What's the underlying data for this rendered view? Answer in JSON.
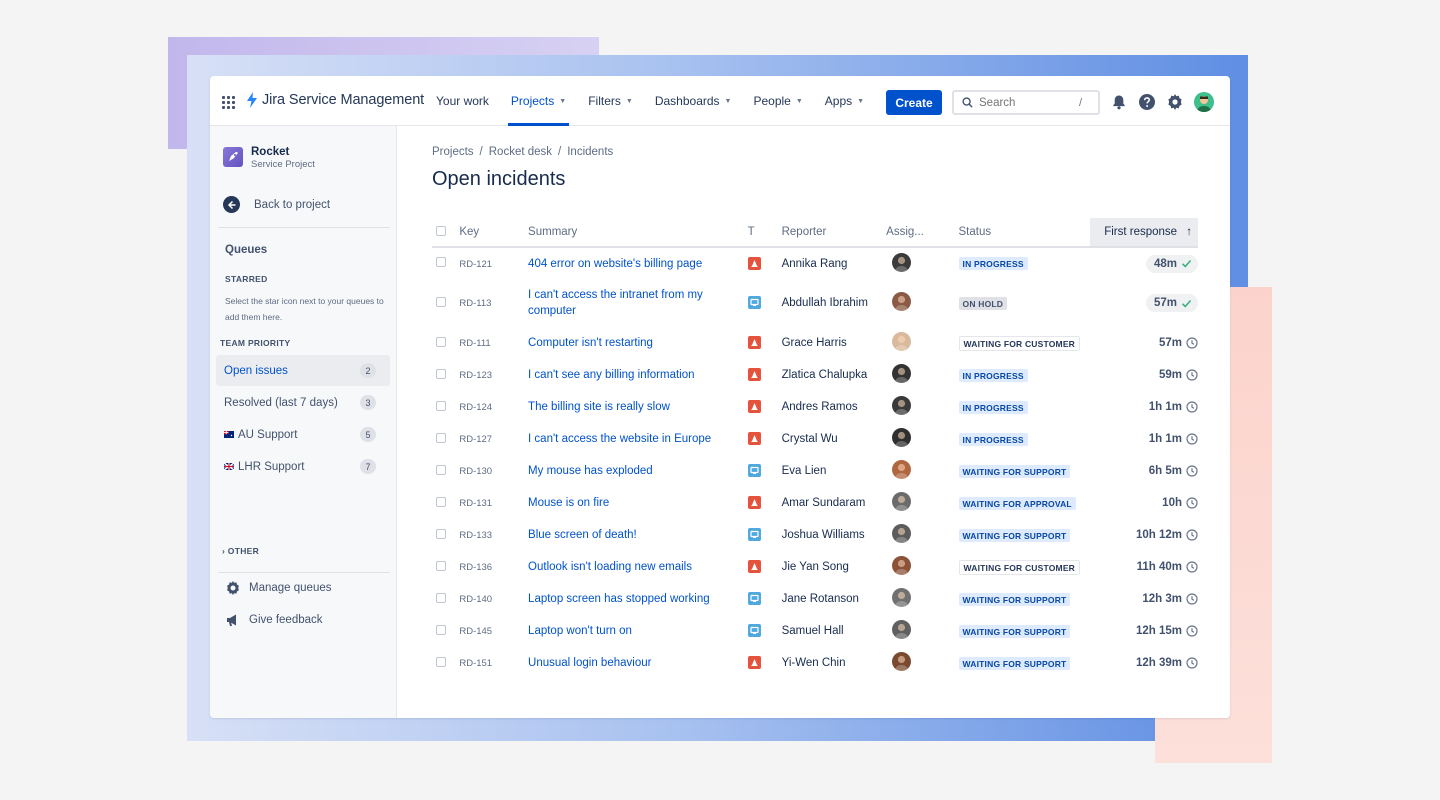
{
  "nav": {
    "product": "Jira Service Management",
    "items": [
      {
        "label": "Your work",
        "caret": false,
        "active": false
      },
      {
        "label": "Projects",
        "caret": true,
        "active": true
      },
      {
        "label": "Filters",
        "caret": true,
        "active": false
      },
      {
        "label": "Dashboards",
        "caret": true,
        "active": false
      },
      {
        "label": "People",
        "caret": true,
        "active": false
      },
      {
        "label": "Apps",
        "caret": true,
        "active": false
      }
    ],
    "create_label": "Create",
    "search_placeholder": "Search",
    "search_shortcut": "/"
  },
  "sidebar": {
    "project_name": "Rocket",
    "project_type": "Service Project",
    "back_label": "Back to project",
    "queues_heading": "Queues",
    "starred_heading": "STARRED",
    "starred_note": "Select the star icon next to your queues to add them here.",
    "team_heading": "TEAM PRIORITY",
    "queues": [
      {
        "label": "Open issues",
        "count": "2",
        "flag": "",
        "selected": true
      },
      {
        "label": "Resolved (last 7 days)",
        "count": "3",
        "flag": "",
        "selected": false
      },
      {
        "label": "AU Support",
        "count": "5",
        "flag": "au",
        "selected": false
      },
      {
        "label": "LHR Support",
        "count": "7",
        "flag": "uk",
        "selected": false
      }
    ],
    "other_heading": "OTHER",
    "manage_label": "Manage queues",
    "feedback_label": "Give feedback"
  },
  "main": {
    "breadcrumbs": [
      "Projects",
      "Rocket desk",
      "Incidents"
    ],
    "title": "Open incidents",
    "columns": {
      "key": "Key",
      "summary": "Summary",
      "type": "T",
      "reporter": "Reporter",
      "assignee": "Assig...",
      "status": "Status",
      "first_response": "First response"
    },
    "rows": [
      {
        "key": "RD-121",
        "summary": "404 error on website's billing page",
        "type": "incident",
        "reporter": "Annika Rang",
        "avatar": "#3b3b3b",
        "status": "IN PROGRESS",
        "status_style": "blue",
        "response": "48m",
        "met": true
      },
      {
        "key": "RD-113",
        "summary": "I can't access the intranet from my computer",
        "type": "service",
        "reporter": "Abdullah Ibrahim",
        "avatar": "#8a5a44",
        "status": "ON HOLD",
        "status_style": "gray",
        "response": "57m",
        "met": true
      },
      {
        "key": "RD-111",
        "summary": "Computer isn't restarting",
        "type": "incident",
        "reporter": "Grace Harris",
        "avatar": "#d9b99b",
        "status": "WAITING FOR CUSTOMER",
        "status_style": "white",
        "response": "57m",
        "met": false
      },
      {
        "key": "RD-123",
        "summary": "I can't see any billing information",
        "type": "incident",
        "reporter": "Zlatica Chalupka",
        "avatar": "#333333",
        "status": "IN PROGRESS",
        "status_style": "blue",
        "response": "59m",
        "met": false
      },
      {
        "key": "RD-124",
        "summary": "The billing site is really slow",
        "type": "incident",
        "reporter": "Andres Ramos",
        "avatar": "#3a3a3a",
        "status": "IN PROGRESS",
        "status_style": "blue",
        "response": "1h 1m",
        "met": false
      },
      {
        "key": "RD-127",
        "summary": "I can't access the website in Europe",
        "type": "incident",
        "reporter": "Crystal Wu",
        "avatar": "#2f2f2f",
        "status": "IN PROGRESS",
        "status_style": "blue",
        "response": "1h 1m",
        "met": false
      },
      {
        "key": "RD-130",
        "summary": "My mouse has exploded",
        "type": "service",
        "reporter": "Eva Lien",
        "avatar": "#b0673f",
        "status": "WAITING FOR SUPPORT",
        "status_style": "blue",
        "response": "6h 5m",
        "met": false
      },
      {
        "key": "RD-131",
        "summary": "Mouse is on fire",
        "type": "incident",
        "reporter": "Amar Sundaram",
        "avatar": "#6b6b6b",
        "status": "WAITING FOR APPROVAL",
        "status_style": "blue",
        "response": "10h",
        "met": false
      },
      {
        "key": "RD-133",
        "summary": "Blue screen of death!",
        "type": "service",
        "reporter": "Joshua Williams",
        "avatar": "#5c5c5c",
        "status": "WAITING FOR SUPPORT",
        "status_style": "blue",
        "response": "10h 12m",
        "met": false
      },
      {
        "key": "RD-136",
        "summary": "Outlook isn't loading new emails",
        "type": "incident",
        "reporter": "Jie Yan Song",
        "avatar": "#8b5238",
        "status": "WAITING FOR CUSTOMER",
        "status_style": "white",
        "response": "11h 40m",
        "met": false
      },
      {
        "key": "RD-140",
        "summary": "Laptop screen has stopped working",
        "type": "service",
        "reporter": "Jane Rotanson",
        "avatar": "#707070",
        "status": "WAITING FOR SUPPORT",
        "status_style": "blue",
        "response": "12h 3m",
        "met": false
      },
      {
        "key": "RD-145",
        "summary": "Laptop won't turn on",
        "type": "service",
        "reporter": "Samuel Hall",
        "avatar": "#606060",
        "status": "WAITING FOR SUPPORT",
        "status_style": "blue",
        "response": "12h 15m",
        "met": false
      },
      {
        "key": "RD-151",
        "summary": "Unusual login behaviour",
        "type": "incident",
        "reporter": "Yi-Wen Chin",
        "avatar": "#7a4a30",
        "status": "WAITING FOR SUPPORT",
        "status_style": "blue",
        "response": "12h 39m",
        "met": false
      }
    ]
  }
}
